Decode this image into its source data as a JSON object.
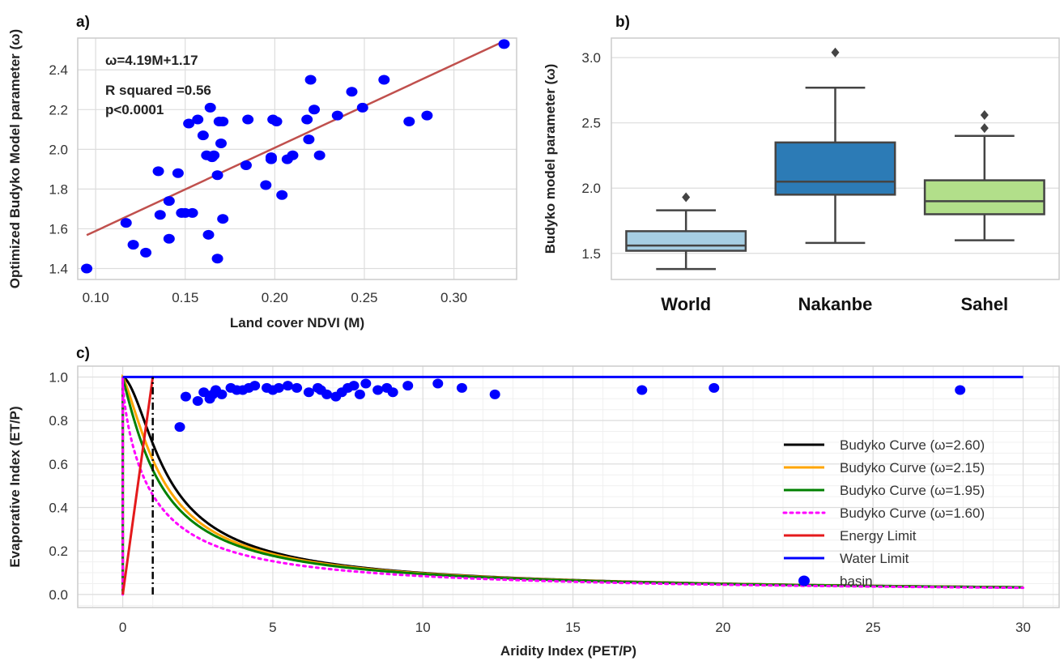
{
  "chart_data": [
    {
      "panel": "a)",
      "type": "scatter",
      "xlabel": "Land cover NDVI (M)",
      "ylabel": "Optimized Budyko Model parameter (ω)",
      "xlim": [
        0.09,
        0.335
      ],
      "ylim": [
        1.345,
        2.56
      ],
      "xticks": [
        "0.10",
        "0.15",
        "0.20",
        "0.25",
        "0.30"
      ],
      "yticks": [
        "1.4",
        "1.6",
        "1.8",
        "2.0",
        "2.2",
        "2.4"
      ],
      "grid": true,
      "point_color": "#0000ff",
      "fit_color": "#c0504d",
      "annotations": [
        "ω=4.19M+1.17",
        "R squared =0.56",
        "p<0.0001"
      ],
      "fit": {
        "slope": 4.19,
        "intercept": 1.17,
        "x": [
          0.095,
          0.328
        ]
      },
      "x": [
        0.095,
        0.117,
        0.121,
        0.128,
        0.135,
        0.136,
        0.141,
        0.141,
        0.146,
        0.148,
        0.15,
        0.152,
        0.154,
        0.157,
        0.16,
        0.162,
        0.163,
        0.164,
        0.165,
        0.166,
        0.168,
        0.168,
        0.169,
        0.17,
        0.171,
        0.171,
        0.184,
        0.185,
        0.195,
        0.198,
        0.198,
        0.199,
        0.201,
        0.204,
        0.207,
        0.21,
        0.218,
        0.219,
        0.22,
        0.222,
        0.225,
        0.235,
        0.243,
        0.249,
        0.261,
        0.275,
        0.285,
        0.328
      ],
      "y": [
        1.4,
        1.63,
        1.52,
        1.48,
        1.89,
        1.67,
        1.74,
        1.55,
        1.88,
        1.68,
        1.68,
        2.13,
        1.68,
        2.15,
        2.07,
        1.97,
        1.57,
        2.21,
        1.96,
        1.97,
        1.45,
        1.87,
        2.14,
        2.03,
        1.65,
        2.14,
        1.92,
        2.15,
        1.82,
        1.95,
        1.96,
        2.15,
        2.14,
        1.77,
        1.95,
        1.97,
        2.15,
        2.05,
        2.35,
        2.2,
        1.97,
        2.17,
        2.29,
        2.21,
        2.35,
        2.14,
        2.17,
        2.53
      ]
    },
    {
      "panel": "b)",
      "type": "box",
      "xlabel": "",
      "ylabel": "Budyko model parameter (ω)",
      "ylim": [
        1.3,
        3.15
      ],
      "yticks": [
        "1.5",
        "2.0",
        "2.5",
        "3.0"
      ],
      "grid": true,
      "categories": [
        "World",
        "Nakanbe",
        "Sahel"
      ],
      "boxes": [
        {
          "color": "#a6cee3",
          "whislo": 1.38,
          "q1": 1.52,
          "med": 1.56,
          "q3": 1.67,
          "whishi": 1.83,
          "fliers": [
            1.93
          ]
        },
        {
          "color": "#2c7bb6",
          "whislo": 1.58,
          "q1": 1.95,
          "med": 2.05,
          "q3": 2.35,
          "whishi": 2.77,
          "fliers": [
            3.04
          ]
        },
        {
          "color": "#b2df8a",
          "whislo": 1.6,
          "q1": 1.8,
          "med": 1.9,
          "q3": 2.06,
          "whishi": 2.4,
          "fliers": [
            2.46,
            2.56
          ]
        }
      ]
    },
    {
      "panel": "c)",
      "type": "line",
      "xlabel": "Aridity Index (PET/P)",
      "ylabel": "Evaporative Index (ET/P)",
      "xlim": [
        -1.5,
        31.2
      ],
      "ylim": [
        -0.06,
        1.05
      ],
      "xticks": [
        "0",
        "5",
        "10",
        "15",
        "20",
        "25",
        "30"
      ],
      "yticks": [
        "0.0",
        "0.2",
        "0.4",
        "0.6",
        "0.8",
        "1.0"
      ],
      "grid": true,
      "legend_position": "lower-right",
      "vline_x": 1.0,
      "series": [
        {
          "name": "Budyko Curve (ω=2.60)",
          "kind": "fu",
          "omega": 2.6,
          "color": "#000000",
          "dash": "solid"
        },
        {
          "name": "Budyko Curve (ω=2.15)",
          "kind": "fu",
          "omega": 2.15,
          "color": "#ffa500",
          "dash": "solid"
        },
        {
          "name": "Budyko Curve (ω=1.95)",
          "kind": "fu",
          "omega": 1.95,
          "color": "#008000",
          "dash": "solid"
        },
        {
          "name": "Budyko Curve (ω=1.60)",
          "kind": "fu",
          "omega": 1.6,
          "color": "#ff00ff",
          "dash": "dotted"
        },
        {
          "name": "Energy Limit",
          "kind": "segment",
          "x": [
            0,
            1
          ],
          "y": [
            0,
            1
          ],
          "color": "#e41a1c",
          "dash": "solid"
        },
        {
          "name": "Water Limit",
          "kind": "segment",
          "x": [
            0,
            30
          ],
          "y": [
            1,
            1
          ],
          "color": "#0000ff",
          "dash": "solid"
        },
        {
          "name": "basin",
          "kind": "points",
          "color": "#0000ff",
          "x": [
            1.9,
            2.1,
            2.5,
            2.7,
            2.9,
            3.0,
            3.1,
            3.3,
            3.6,
            3.8,
            4.0,
            4.2,
            4.4,
            4.8,
            5.0,
            5.2,
            5.5,
            5.8,
            6.2,
            6.5,
            6.6,
            6.8,
            7.1,
            7.3,
            7.5,
            7.7,
            7.9,
            8.1,
            8.5,
            8.8,
            9.0,
            9.5,
            10.5,
            11.3,
            12.4,
            17.3,
            19.7,
            27.9
          ],
          "y": [
            0.77,
            0.91,
            0.89,
            0.93,
            0.9,
            0.92,
            0.94,
            0.92,
            0.95,
            0.94,
            0.94,
            0.95,
            0.96,
            0.95,
            0.94,
            0.95,
            0.96,
            0.95,
            0.93,
            0.95,
            0.94,
            0.92,
            0.91,
            0.93,
            0.95,
            0.96,
            0.92,
            0.97,
            0.94,
            0.95,
            0.93,
            0.96,
            0.97,
            0.95,
            0.92,
            0.94,
            0.95,
            0.94
          ]
        }
      ]
    }
  ]
}
